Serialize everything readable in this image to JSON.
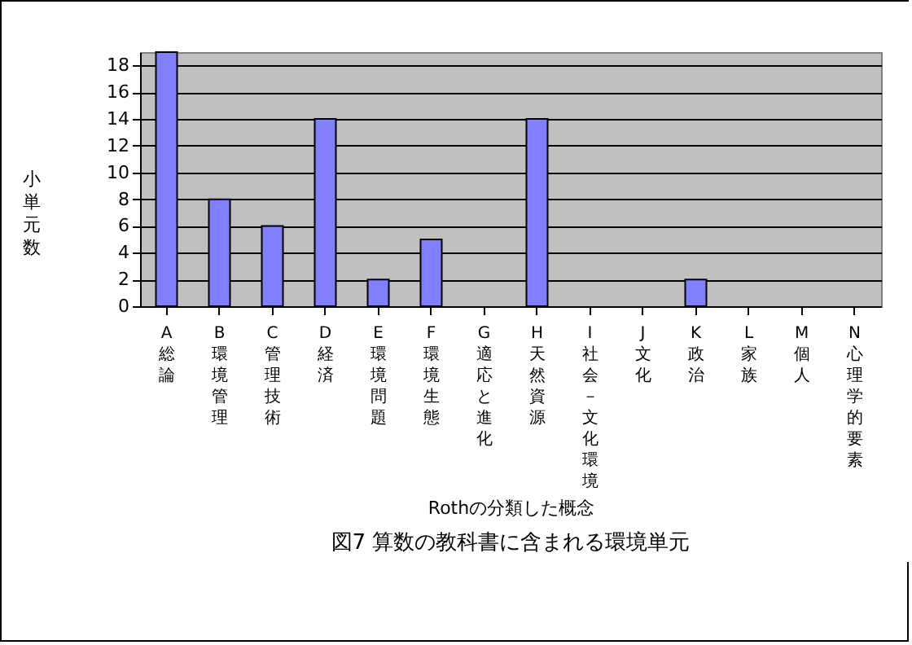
{
  "chart_data": {
    "type": "bar",
    "title": "図7 算数の教科書に含まれる環境単元",
    "xlabel": "Rothの分類した概念",
    "ylabel": "小単元数",
    "categories": [
      "A総論",
      "B環境管理",
      "C管理技術",
      "D経済",
      "E環境問題",
      "F環境生態",
      "G適応と進化",
      "H天然資源",
      "I社会－文化環境",
      "J文化",
      "K政治",
      "L家族",
      "M個人",
      "N心理学的要素"
    ],
    "values": [
      19,
      8,
      6,
      14,
      2,
      5,
      0,
      14,
      0,
      0,
      2,
      0,
      0,
      0
    ],
    "color": "#8080ff",
    "ylim": [
      0,
      19
    ],
    "yticks": [
      0,
      2,
      4,
      6,
      8,
      10,
      12,
      14,
      16,
      18
    ],
    "grid": "y"
  }
}
